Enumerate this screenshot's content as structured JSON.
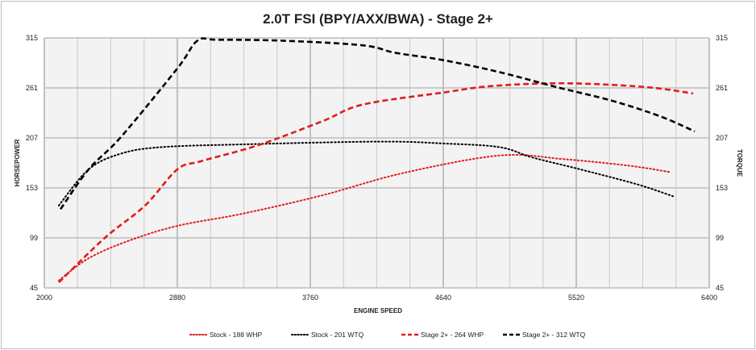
{
  "chart_data": {
    "type": "line",
    "title": "2.0T FSI (BPY/AXX/BWA) - Stage 2+",
    "xlabel": "ENGINE SPEED",
    "ylabel": "HORSEPOWER",
    "ylabel_right": "TORQUE",
    "xlim": [
      2000,
      6400
    ],
    "ylim": [
      45,
      315
    ],
    "x_ticks": [
      "2000",
      "2880",
      "3760",
      "4640",
      "5520",
      "6400"
    ],
    "y_ticks": [
      "45",
      "99",
      "153",
      "207",
      "261",
      "315"
    ],
    "grid": true,
    "legend_position": "bottom",
    "series": [
      {
        "name": "Stock - 188 WHP",
        "color": "#e31b1b",
        "style": "dotted",
        "x": [
          2096,
          2293,
          2560,
          2880,
          3307,
          3840,
          4373,
          5013,
          5440,
          5867,
          6144
        ],
        "y": [
          53,
          77,
          96,
          112,
          125,
          145,
          169,
          188,
          184,
          177,
          170
        ]
      },
      {
        "name": "Stock - 201 WTQ",
        "color": "#000000",
        "style": "dotted",
        "x": [
          2096,
          2293,
          2507,
          2773,
          3307,
          4213,
          4640,
          5013,
          5227,
          5547,
          5920,
          6160
        ],
        "y": [
          134,
          173,
          190,
          197,
          200,
          203,
          201,
          197,
          186,
          173,
          157,
          144
        ]
      },
      {
        "name": "Stage 2+ - 264 WHP",
        "color": "#e31b1b",
        "style": "dashed",
        "x": [
          2096,
          2400,
          2667,
          2880,
          3040,
          3413,
          3840,
          4107,
          4640,
          4960,
          5440,
          5973,
          6293
        ],
        "y": [
          51,
          99,
          134,
          173,
          182,
          199,
          225,
          243,
          256,
          263,
          266,
          262,
          255
        ]
      },
      {
        "name": "Stage 2+ - 312 WTQ",
        "color": "#000000",
        "style": "dashed",
        "x": [
          2107,
          2293,
          2507,
          2880,
          3013,
          3147,
          3573,
          4107,
          4320,
          4640,
          5013,
          5387,
          5760,
          6080,
          6304
        ],
        "y": [
          130,
          173,
          208,
          282,
          312,
          313,
          312,
          307,
          299,
          291,
          278,
          262,
          247,
          230,
          214
        ]
      }
    ]
  }
}
